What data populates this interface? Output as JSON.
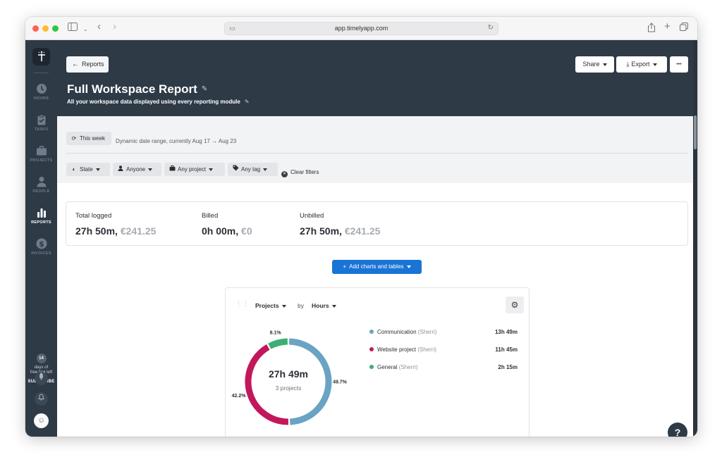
{
  "browser": {
    "url": "app.timelyapp.com"
  },
  "sidebar": {
    "items": [
      {
        "label": "HOURS",
        "icon": "clock-icon"
      },
      {
        "label": "TASKS",
        "icon": "clipboard-icon"
      },
      {
        "label": "PROJECTS",
        "icon": "briefcase-icon"
      },
      {
        "label": "PEOPLE",
        "icon": "person-icon"
      },
      {
        "label": "REPORTS",
        "icon": "bar-chart-icon"
      },
      {
        "label": "INVOICES",
        "icon": "dollar-icon"
      }
    ],
    "trial_days": "14",
    "trial_text_1": "days of",
    "trial_text_2": "free trial left",
    "subscribe_label": "SUBSCRIBE"
  },
  "header": {
    "back_label": "Reports",
    "share_label": "Share",
    "export_label": "Export",
    "more_label": "•••",
    "title": "Full Workspace Report",
    "subtitle": "All your workspace data displayed using every reporting module"
  },
  "filters": {
    "range_label": "This week",
    "range_text": "Dynamic date range, currently Aug 17 → Aug 23",
    "state_label": "State",
    "anyone_label": "Anyone",
    "project_label": "Any project",
    "tag_label": "Any tag",
    "clear_label": "Clear filters"
  },
  "summary": {
    "total_label": "Total logged",
    "total_time": "27h 50m,",
    "total_amount": "€241.25",
    "billed_label": "Billed",
    "billed_time": "0h 00m,",
    "billed_amount": "€0",
    "unbilled_label": "Unbilled",
    "unbilled_time": "27h 50m,",
    "unbilled_amount": "€241.25"
  },
  "add_button_label": "Add charts and tables",
  "chart_card": {
    "group_label": "Projects",
    "by_label": "by",
    "metric_label": "Hours",
    "center_value": "27h 49m",
    "center_sub": "3 projects"
  },
  "chart_data": {
    "type": "pie",
    "variant": "donut",
    "categories": [
      "Communication",
      "Website project",
      "General"
    ],
    "owners": [
      "(Sherri)",
      "(Sherri)",
      "(Sherri)"
    ],
    "values": [
      49.7,
      42.2,
      8.1
    ],
    "value_labels": [
      "49.7%",
      "42.2%",
      "8.1%"
    ],
    "durations": [
      "13h 49m",
      "11h 45m",
      "2h 15m"
    ],
    "colors": [
      "#6aa3c3",
      "#c2185b",
      "#3dae74"
    ],
    "legend_position": "right"
  },
  "help_label": "?"
}
